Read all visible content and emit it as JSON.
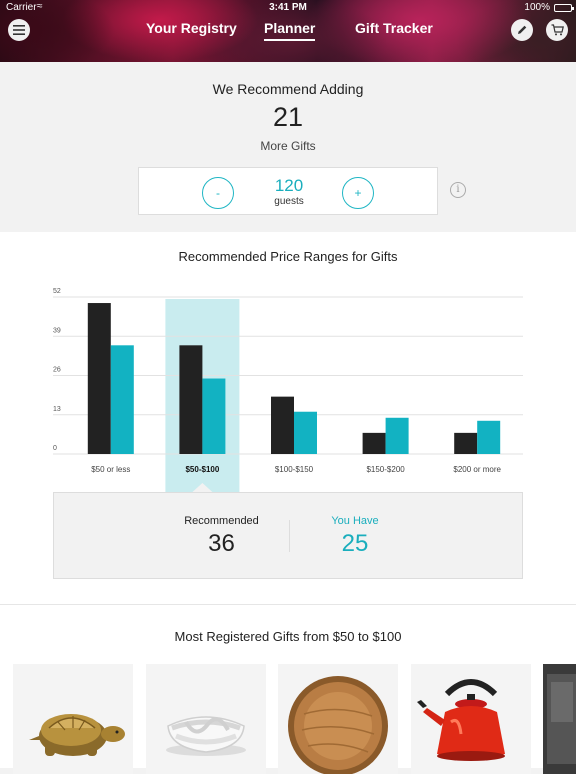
{
  "status_bar": {
    "carrier": "Carrier",
    "time": "3:41 PM",
    "battery": "100%"
  },
  "nav": {
    "tabs": [
      "Your Registry",
      "Planner",
      "Gift Tracker"
    ],
    "active_tab": "Planner"
  },
  "icons": {
    "menu": "menu-icon",
    "edit": "pencil-icon",
    "cart": "cart-icon",
    "info": "info-icon"
  },
  "summary": {
    "title": "We Recommend Adding",
    "count": "21",
    "count_label": "More Gifts",
    "guests": "120",
    "guests_label": "guests",
    "minus_label": "-",
    "plus_label": "+",
    "info_label": "i"
  },
  "chart_data": {
    "type": "bar",
    "title": "Recommended Price Ranges for Gifts",
    "categories": [
      "$50 or less",
      "$50-$100",
      "$100-$150",
      "$150-$200",
      "$200 or more"
    ],
    "series": [
      {
        "name": "Recommended",
        "values": [
          50,
          36,
          19,
          7,
          7
        ],
        "color": "#222222"
      },
      {
        "name": "You Have",
        "values": [
          36,
          25,
          14,
          12,
          11
        ],
        "color": "#12b2c2"
      }
    ],
    "ylim": [
      0,
      52
    ],
    "yticks": [
      0,
      13,
      26,
      39,
      52
    ],
    "selected_category": "$50-$100",
    "grid": true
  },
  "detail": {
    "recommended_label": "Recommended",
    "recommended_value": "36",
    "have_label": "You Have",
    "have_value": "25"
  },
  "gifts": {
    "title": "Most Registered Gifts from $50 to $100",
    "items": [
      "gold-turtle-figurine",
      "white-rope-bowl",
      "wooden-bowl",
      "red-tea-kettle",
      "partial-gift-image"
    ]
  },
  "colors": {
    "accent": "#1aaebd",
    "highlight": "#c9ecef",
    "dark": "#222222"
  }
}
